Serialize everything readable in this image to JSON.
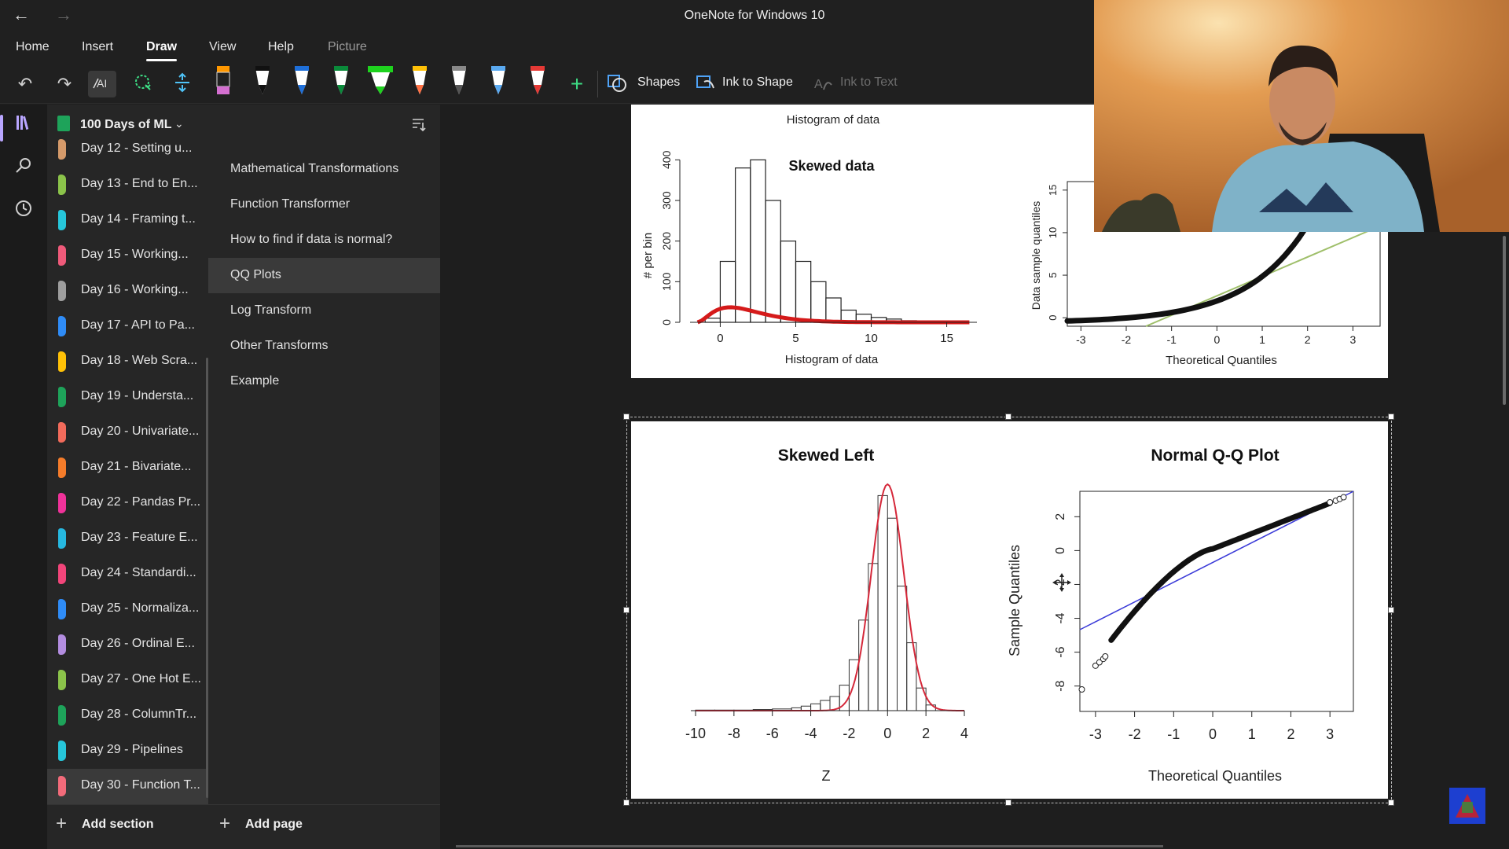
{
  "window": {
    "title": "OneNote for Windows 10"
  },
  "menu": {
    "tabs": [
      "Home",
      "Insert",
      "Draw",
      "View",
      "Help",
      "Picture"
    ]
  },
  "toolbar": {
    "shapes_label": "Shapes",
    "ink_to_shape_label": "Ink to Shape",
    "ink_to_text_label": "Ink to Text"
  },
  "notebook": {
    "name": "100 Days of ML"
  },
  "sections": [
    {
      "label": "Day 12 - Setting u...",
      "color": "#d59a6a"
    },
    {
      "label": "Day 13 - End to En...",
      "color": "#8bc34a"
    },
    {
      "label": "Day 14 - Framing t...",
      "color": "#26c6da"
    },
    {
      "label": "Day 15 - Working...",
      "color": "#ef5a7a"
    },
    {
      "label": "Day 16 - Working...",
      "color": "#9e9e9e"
    },
    {
      "label": "Day 17 - API to Pa...",
      "color": "#2f8cf7"
    },
    {
      "label": "Day 18 - Web Scra...",
      "color": "#ffc107"
    },
    {
      "label": "Day 19 - Understa...",
      "color": "#1ea35a"
    },
    {
      "label": "Day 20 - Univariate...",
      "color": "#f26b5b"
    },
    {
      "label": "Day 21 - Bivariate...",
      "color": "#f57c2a"
    },
    {
      "label": "Day 22 - Pandas Pr...",
      "color": "#f0329a"
    },
    {
      "label": "Day 23 - Feature E...",
      "color": "#26b8e0"
    },
    {
      "label": "Day 24 - Standardi...",
      "color": "#f2457a"
    },
    {
      "label": "Day 25 - Normaliza...",
      "color": "#2f8cf7"
    },
    {
      "label": "Day 26 - Ordinal E...",
      "color": "#b38de0"
    },
    {
      "label": "Day 27 - One Hot E...",
      "color": "#8bc34a"
    },
    {
      "label": "Day 28 - ColumnTr...",
      "color": "#1ea35a"
    },
    {
      "label": "Day 29 - Pipelines",
      "color": "#26c6da"
    },
    {
      "label": "Day 30 - Function T...",
      "color": "#f26b7a"
    }
  ],
  "pages": [
    {
      "label": "Mathematical Transformations"
    },
    {
      "label": "Function Transformer"
    },
    {
      "label": "How to find if data is normal?"
    },
    {
      "label": "QQ Plots"
    },
    {
      "label": "Log Transform"
    },
    {
      "label": "Other Transforms"
    },
    {
      "label": "Example"
    }
  ],
  "footer": {
    "add_section": "Add section",
    "add_page": "Add page"
  },
  "top_image": {
    "cut_label": "Histogram of data",
    "hist_title": "Skewed data",
    "hist_ylabel": "# per bin",
    "hist_xlabel": "Histogram of data",
    "hist_yticks": [
      "0",
      "100",
      "200",
      "300",
      "400"
    ],
    "hist_xticks": [
      "0",
      "5",
      "10",
      "15"
    ],
    "qq_ylabel": "Data sample quantiles",
    "qq_xlabel": "Theoretical Quantiles",
    "qq_yticks": [
      "0",
      "5",
      "10",
      "15"
    ],
    "qq_xticks": [
      "-3",
      "-2",
      "-1",
      "0",
      "1",
      "2",
      "3"
    ]
  },
  "bottom_image": {
    "hist_title": "Skewed Left",
    "hist_xlabel": "Z",
    "hist_xticks": [
      "-10",
      "-8",
      "-6",
      "-4",
      "-2",
      "0",
      "2",
      "4"
    ],
    "qq_title": "Normal Q-Q Plot",
    "qq_ylabel": "Sample Quantiles",
    "qq_xlabel": "Theoretical Quantiles",
    "qq_yticks": [
      "2",
      "0",
      "-2",
      "-4",
      "-6",
      "-8"
    ],
    "qq_xticks": [
      "-3",
      "-2",
      "-1",
      "0",
      "1",
      "2",
      "3"
    ]
  },
  "chart_data": [
    {
      "type": "bar",
      "title": "Skewed data",
      "xlabel": "Histogram of data",
      "ylabel": "# per bin",
      "x": [
        -1,
        0,
        1,
        2,
        3,
        4,
        5,
        6,
        7,
        8,
        9,
        10,
        11,
        12,
        13
      ],
      "values": [
        10,
        150,
        380,
        400,
        300,
        200,
        150,
        100,
        60,
        30,
        20,
        12,
        8,
        4,
        2
      ],
      "ylim": [
        0,
        420
      ],
      "xlim": [
        -2,
        17
      ]
    },
    {
      "type": "scatter",
      "ylabel": "Data sample quantiles",
      "xlabel": "Theoretical Quantiles",
      "xlim": [
        -3.3,
        3.6
      ],
      "ylim": [
        -1,
        16
      ]
    },
    {
      "type": "bar",
      "title": "Skewed Left",
      "xlabel": "Z",
      "x": [
        -10,
        -9,
        -8,
        -7,
        -6,
        -5,
        -4.5,
        -4,
        -3.5,
        -3,
        -2.5,
        -2,
        -1.5,
        -1,
        -0.5,
        0,
        0.5,
        1,
        1.5,
        2
      ],
      "values": [
        1,
        1,
        1,
        2,
        3,
        5,
        8,
        12,
        18,
        25,
        45,
        90,
        160,
        260,
        380,
        340,
        220,
        120,
        40,
        10
      ],
      "xlim": [
        -10,
        4
      ]
    },
    {
      "type": "scatter",
      "title": "Normal Q-Q Plot",
      "ylabel": "Sample Quantiles",
      "xlabel": "Theoretical Quantiles",
      "xlim": [
        -3.4,
        3.6
      ],
      "ylim": [
        -9.5,
        3.5
      ]
    }
  ]
}
